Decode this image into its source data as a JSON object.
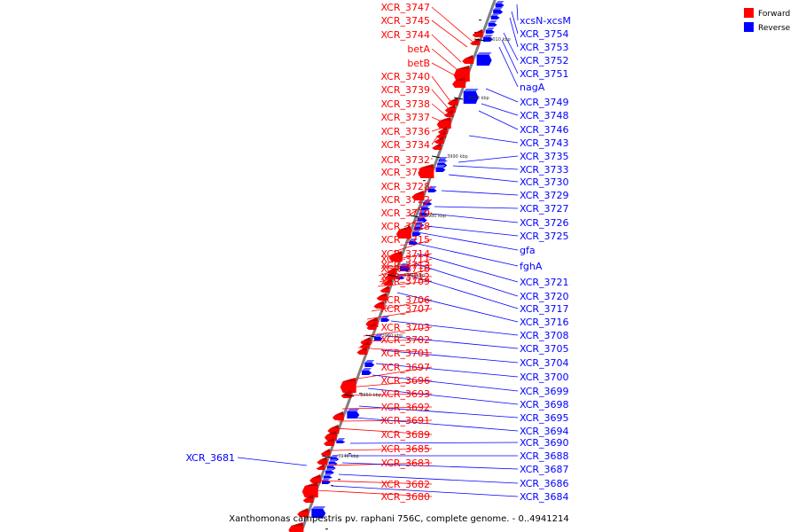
{
  "caption": "Xanthomonas campestris pv. raphani 756C, complete genome. - 0..4941214",
  "colors": {
    "forward": "#ff0000",
    "reverse": "#0000ff",
    "backbone": "#808080"
  },
  "legend": [
    {
      "label": "Forward",
      "strand": "forward"
    },
    {
      "label": "Reverse",
      "strand": "reverse"
    }
  ],
  "ruler": [
    "4010 kbp",
    "4000 kbp",
    "3990 kbp",
    "3980 kbp",
    "3970 kbp",
    "3960 kbp",
    "3950 kbp",
    "3940 kbp"
  ],
  "forward_labels": [
    "XCR_3747",
    "XCR_3745",
    "XCR_3744",
    "betA",
    "betB",
    "XCR_3740",
    "XCR_3739",
    "XCR_3738",
    "XCR_3737",
    "XCR_3736",
    "XCR_3734",
    "XCR_3732",
    "XCR_3731",
    "XCR_3728",
    "XCR_3722",
    "XCR_3719",
    "XCR_3718",
    "XCR_3715",
    "XCR_3714",
    "XCR_3711",
    "XCR_3713",
    "XCR_3710",
    "XCR_3712",
    "XCR_3709",
    "XCR_3706",
    "XCR_3707",
    "XCR_3703",
    "XCR_3702",
    "XCR_3701",
    "XCR_3697",
    "XCR_3696",
    "XCR_3693",
    "XCR_3692",
    "XCR_3691",
    "XCR_3689",
    "XCR_3685",
    "XCR_3683",
    "XCR_3682",
    "XCR_3680"
  ],
  "reverse_labels": [
    "xcsN-xcsM",
    "XCR_3754",
    "XCR_3753",
    "XCR_3752",
    "XCR_3751",
    "nagA",
    "XCR_3749",
    "XCR_3748",
    "XCR_3746",
    "XCR_3743",
    "XCR_3735",
    "XCR_3733",
    "XCR_3730",
    "XCR_3729",
    "XCR_3727",
    "XCR_3726",
    "XCR_3725",
    "gfa",
    "fghA",
    "XCR_3721",
    "XCR_3720",
    "XCR_3717",
    "XCR_3716",
    "XCR_3708",
    "XCR_3705",
    "XCR_3704",
    "XCR_3700",
    "XCR_3699",
    "XCR_3698",
    "XCR_3695",
    "XCR_3694",
    "XCR_3690",
    "XCR_3688",
    "XCR_3681",
    "XCR_3687",
    "XCR_3686",
    "XCR_3684"
  ]
}
